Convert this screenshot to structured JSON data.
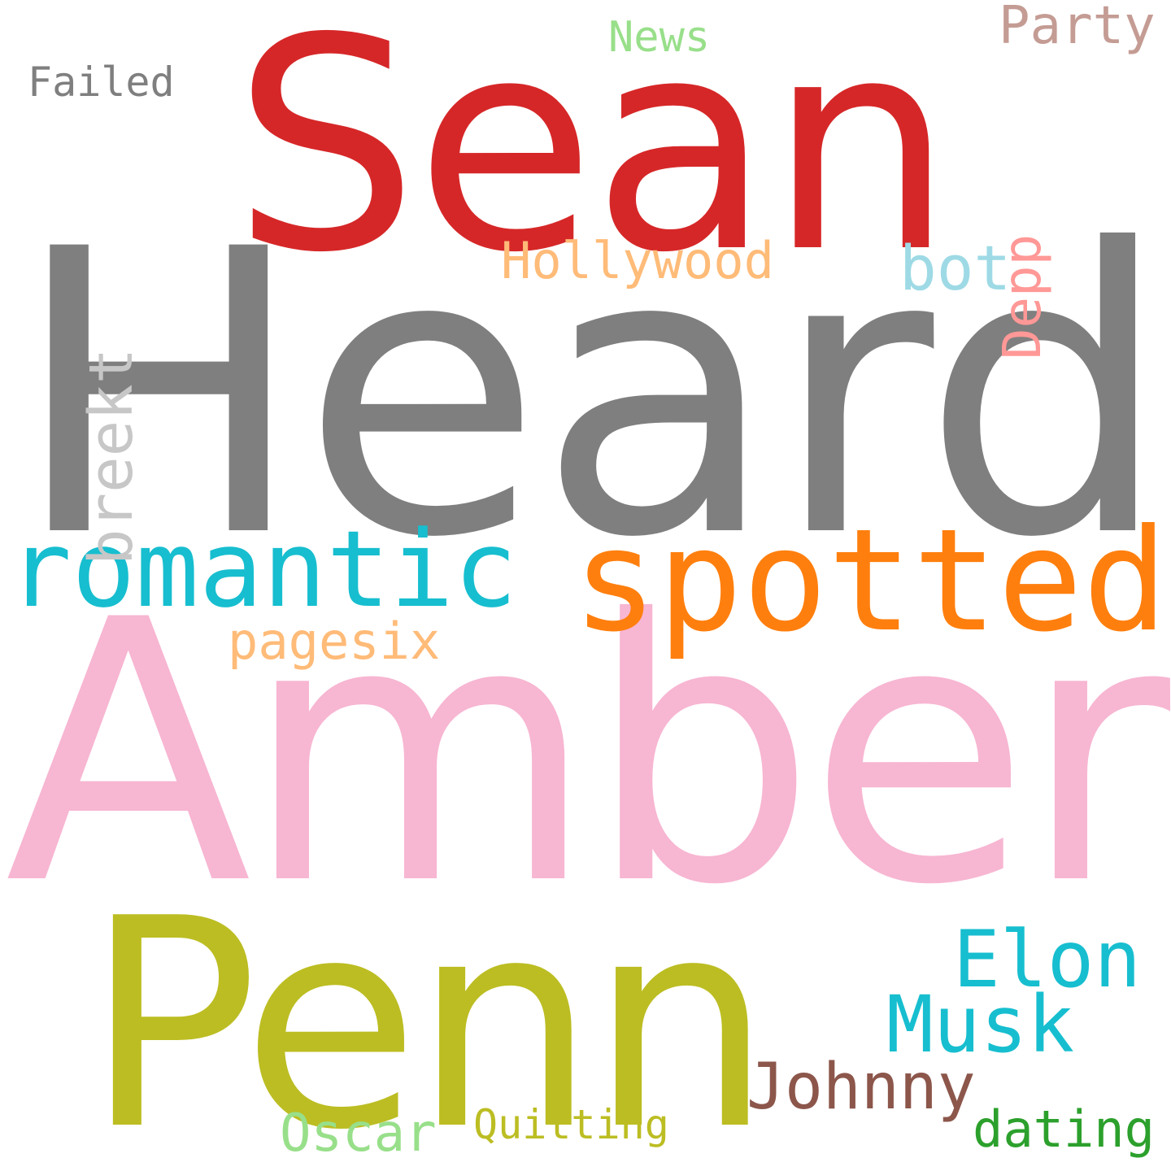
{
  "word_cloud": {
    "words": {
      "heard": {
        "text": "Heard",
        "color": "#7f7f7f"
      },
      "amber": {
        "text": "Amber",
        "color": "#f7b6d2"
      },
      "sean": {
        "text": "Sean",
        "color": "#d62728"
      },
      "penn": {
        "text": "Penn",
        "color": "#bcbd22"
      },
      "spotted": {
        "text": "spotted",
        "color": "#ff7f0e"
      },
      "romantic": {
        "text": "romantic",
        "color": "#17becf"
      },
      "elon": {
        "text": "Elon",
        "color": "#17becf"
      },
      "musk": {
        "text": "Musk",
        "color": "#17becf"
      },
      "johnny": {
        "text": "Johnny",
        "color": "#8c564b"
      },
      "bot": {
        "text": "bot",
        "color": "#9edae5"
      },
      "hollywood": {
        "text": "Hollywood",
        "color": "#ffbb78"
      },
      "pagesix": {
        "text": "pagesix",
        "color": "#ffbb78"
      },
      "party": {
        "text": "Party",
        "color": "#c49c94"
      },
      "news": {
        "text": "News",
        "color": "#98df8a"
      },
      "failed": {
        "text": "Failed",
        "color": "#7f7f7f"
      },
      "dating": {
        "text": "dating",
        "color": "#2ca02c"
      },
      "oscar": {
        "text": "Oscar",
        "color": "#98df8a"
      },
      "quitting": {
        "text": "Quitting",
        "color": "#bcbd22"
      },
      "breekt": {
        "text": "breekt",
        "color": "#c7c7c7"
      },
      "depp": {
        "text": "Depp",
        "color": "#ff9896"
      }
    }
  }
}
